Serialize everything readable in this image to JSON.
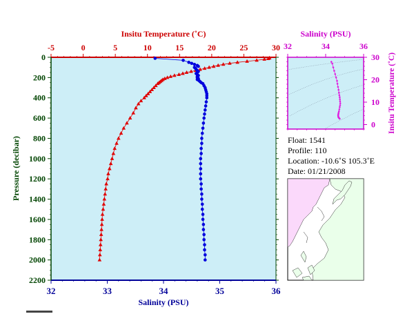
{
  "chart_data": [
    {
      "type": "line",
      "top_axis_label": "Insitu Temperature (˚C)",
      "top_ticks": [
        "-5",
        "0",
        "5",
        "10",
        "15",
        "20",
        "25",
        "30"
      ],
      "bottom_axis_label": "Salinity (PSU)",
      "bottom_ticks": [
        "32",
        "33",
        "34",
        "35",
        "36"
      ],
      "left_axis_label": "Pressure (decibar)",
      "left_ticks": [
        "0",
        "200",
        "400",
        "600",
        "800",
        "1000",
        "1200",
        "1400",
        "1600",
        "1800",
        "2000",
        "2200"
      ],
      "temperature_range": [
        -5,
        30
      ],
      "salinity_range": [
        32,
        36
      ],
      "pressure_range": [
        0,
        2200
      ],
      "series": [
        {
          "color": "#e00000",
          "marker": "triangle",
          "pressure": [
            8,
            14,
            20,
            30,
            40,
            50,
            60,
            70,
            80,
            90,
            100,
            110,
            120,
            130,
            140,
            150,
            160,
            170,
            180,
            190,
            200,
            210,
            220,
            230,
            240,
            250,
            260,
            280,
            300,
            320,
            340,
            360,
            380,
            400,
            430,
            460,
            500,
            550,
            600,
            650,
            700,
            750,
            800,
            850,
            900,
            950,
            1000,
            1050,
            1100,
            1150,
            1200,
            1250,
            1300,
            1350,
            1400,
            1450,
            1500,
            1550,
            1600,
            1650,
            1700,
            1750,
            1800,
            1850,
            1900,
            1950,
            2000
          ],
          "temperature": [
            29.0,
            28.8,
            28.2,
            27.0,
            25.5,
            24.0,
            22.8,
            21.8,
            21.0,
            20.3,
            19.6,
            18.9,
            18.2,
            17.5,
            16.8,
            16.1,
            15.5,
            14.9,
            14.2,
            13.6,
            13.1,
            12.7,
            12.4,
            12.2,
            12.0,
            11.8,
            11.6,
            11.3,
            11.0,
            10.7,
            10.4,
            10.1,
            9.8,
            9.5,
            9.0,
            8.6,
            8.2,
            7.8,
            7.3,
            6.8,
            6.3,
            5.9,
            5.5,
            5.2,
            4.9,
            4.7,
            4.5,
            4.3,
            4.1,
            3.9,
            3.8,
            3.6,
            3.5,
            3.4,
            3.3,
            3.2,
            3.1,
            3.0,
            2.95,
            2.9,
            2.85,
            2.8,
            2.75,
            2.7,
            2.65,
            2.6,
            2.55
          ]
        },
        {
          "color": "#0000dd",
          "marker": "circle",
          "pressure": [
            10,
            30,
            50,
            60,
            70,
            80,
            90,
            100,
            110,
            120,
            130,
            140,
            150,
            160,
            170,
            180,
            190,
            200,
            210,
            220,
            230,
            240,
            250,
            260,
            280,
            300,
            320,
            340,
            360,
            380,
            400,
            440,
            480,
            520,
            560,
            600,
            650,
            700,
            750,
            800,
            850,
            900,
            950,
            1000,
            1050,
            1100,
            1150,
            1200,
            1250,
            1300,
            1350,
            1400,
            1450,
            1500,
            1550,
            1600,
            1650,
            1700,
            1750,
            1800,
            1850,
            1900,
            1950,
            2000
          ],
          "salinity": [
            33.85,
            34.35,
            34.45,
            34.5,
            34.55,
            34.6,
            34.62,
            34.55,
            34.57,
            34.58,
            34.6,
            34.62,
            34.6,
            34.58,
            34.6,
            34.62,
            34.6,
            34.6,
            34.62,
            34.6,
            34.63,
            34.65,
            34.67,
            34.7,
            34.72,
            34.74,
            34.75,
            34.76,
            34.77,
            34.77,
            34.77,
            34.76,
            34.75,
            34.74,
            34.73,
            34.72,
            34.71,
            34.7,
            34.69,
            34.68,
            34.68,
            34.67,
            34.67,
            34.66,
            34.66,
            34.66,
            34.66,
            34.66,
            34.67,
            34.67,
            34.68,
            34.68,
            34.69,
            34.69,
            34.7,
            34.7,
            34.71,
            34.71,
            34.72,
            34.72,
            34.73,
            34.73,
            34.74,
            34.74
          ]
        }
      ]
    },
    {
      "type": "scatter",
      "top_axis_label": "Salinity (PSU)",
      "top_ticks": [
        "32",
        "34",
        "36"
      ],
      "right_axis_label": "Insitu Temperature (˚C)",
      "right_ticks": [
        "0",
        "10",
        "20",
        "30"
      ],
      "salinity_range": [
        32,
        36
      ],
      "temperature_range": [
        -2,
        30
      ],
      "series": [
        {
          "color": "#e020e0",
          "salinity": [
            34.3,
            34.35,
            34.4,
            34.45,
            34.5,
            34.55,
            34.6,
            34.62,
            34.65,
            34.68,
            34.7,
            34.72,
            34.74,
            34.75,
            34.76,
            34.77,
            34.76,
            34.74,
            34.72,
            34.7,
            34.68,
            34.67,
            34.66,
            34.66,
            34.67,
            34.68,
            34.7,
            34.72,
            34.74
          ],
          "temperature": [
            28.0,
            27.2,
            25.5,
            24.0,
            22.5,
            21.0,
            19.5,
            18.2,
            16.8,
            15.5,
            14.2,
            13.1,
            12.2,
            11.3,
            10.4,
            9.5,
            8.6,
            7.8,
            6.8,
            5.9,
            5.2,
            4.7,
            4.3,
            3.9,
            3.5,
            3.2,
            3.0,
            2.8,
            2.6
          ]
        }
      ]
    }
  ],
  "float_info": {
    "float": "Float:  1541",
    "profile": "Profile:  110",
    "location": "Location:  -10.6˚S  105.3˚E",
    "date": "Date:  01/21/2008"
  },
  "colors": {
    "plot_background": "#cdeef7",
    "map_ocean": "#ffffff",
    "map_land_light": "#eaffea",
    "map_land_pink": "#fbd9fb"
  }
}
